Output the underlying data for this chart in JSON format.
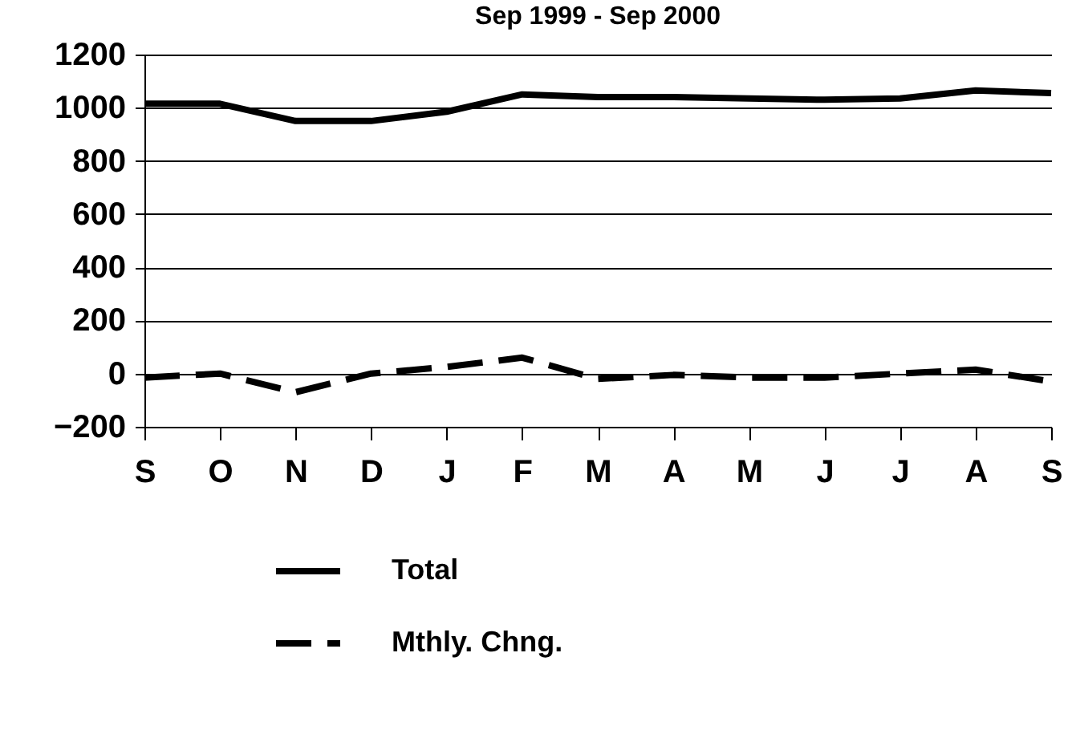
{
  "chart_data": {
    "type": "line",
    "title": "Sep 1999 - Sep 2000",
    "categories": [
      "S",
      "O",
      "N",
      "D",
      "J",
      "F",
      "M",
      "A",
      "M",
      "J",
      "J",
      "A",
      "S"
    ],
    "series": [
      {
        "name": "Total",
        "color": "#000000",
        "line_style": "solid",
        "values": [
          1015,
          1015,
          950,
          950,
          985,
          1050,
          1040,
          1040,
          1035,
          1030,
          1035,
          1065,
          1055
        ]
      },
      {
        "name": "Mthly. Chng.",
        "color": "#000000",
        "line_style": "dashed",
        "values": [
          -15,
          0,
          -70,
          0,
          25,
          60,
          -20,
          -5,
          -15,
          -15,
          0,
          15,
          -30
        ]
      }
    ],
    "ylim": [
      -200,
      1200
    ],
    "yticks": [
      -200,
      0,
      200,
      400,
      600,
      800,
      1000,
      1200
    ],
    "grid": "y",
    "legend": "bottom",
    "marker": "none"
  }
}
